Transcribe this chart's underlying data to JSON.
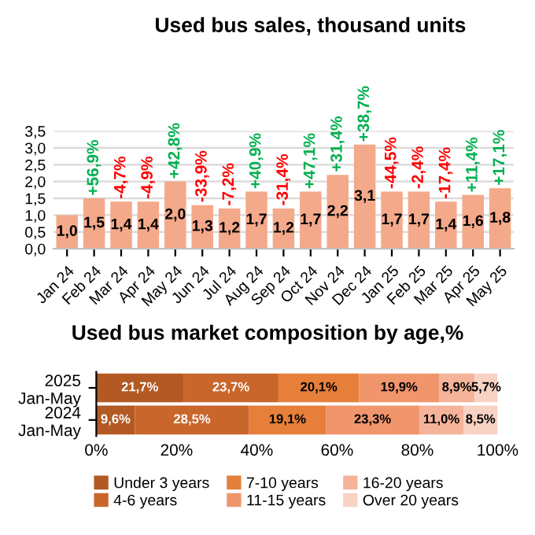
{
  "chart_data": [
    {
      "type": "bar",
      "title": "Used bus sales, thousand units",
      "categories": [
        "Jan 24",
        "Feb 24",
        "Mar 24",
        "Apr 24",
        "May 24",
        "Jun 24",
        "Jul 24",
        "Aug 24",
        "Sep 24",
        "Oct 24",
        "Nov 24",
        "Dec 24",
        "Jan 25",
        "Feb 25",
        "Mar 25",
        "Apr 25",
        "May 25"
      ],
      "values": [
        1.0,
        1.5,
        1.4,
        1.4,
        2.0,
        1.3,
        1.2,
        1.7,
        1.2,
        1.7,
        2.2,
        3.1,
        1.7,
        1.7,
        1.4,
        1.6,
        1.8
      ],
      "value_labels": [
        "1,0",
        "1,5",
        "1,4",
        "1,4",
        "2,0",
        "1,3",
        "1,2",
        "1,7",
        "1,2",
        "1,7",
        "2,2",
        "3,1",
        "1,7",
        "1,7",
        "1,4",
        "1,6",
        "1,8"
      ],
      "color": "#f4a98a",
      "ylim": [
        0,
        3.5
      ],
      "yticks": [
        {
          "value": 0,
          "label": "0,0"
        },
        {
          "value": 0.5,
          "label": "0,5"
        },
        {
          "value": 1,
          "label": "1,0"
        },
        {
          "value": 1.5,
          "label": "1,5"
        },
        {
          "value": 2,
          "label": "2,0"
        },
        {
          "value": 2.5,
          "label": "2,5"
        },
        {
          "value": 3,
          "label": "3,0"
        },
        {
          "value": 3.5,
          "label": "3,5"
        }
      ],
      "grid": "y",
      "annotations": [
        {
          "text": "+56,9%",
          "x": "Feb 24",
          "y": 1.5
        },
        {
          "text": "-4,7%",
          "x": "Mar 24",
          "y": 1.4
        },
        {
          "text": "-4,9%",
          "x": "Apr 24",
          "y": 1.4
        },
        {
          "text": "+42,8%",
          "x": "May 24",
          "y": 2.0
        },
        {
          "text": "-33,9%",
          "x": "Jun 24",
          "y": 1.3
        },
        {
          "text": "-7,2%",
          "x": "Jul 24",
          "y": 1.2
        },
        {
          "text": "+40,9%",
          "x": "Aug 24",
          "y": 1.7
        },
        {
          "text": "-31,4%",
          "x": "Sep 24",
          "y": 1.2
        },
        {
          "text": "+47,1%",
          "x": "Oct 24",
          "y": 1.7
        },
        {
          "text": "+31,4%",
          "x": "Nov 24",
          "y": 2.2
        },
        {
          "text": "+38,7%",
          "x": "Dec 24",
          "y": 3.1
        },
        {
          "text": "-44,5%",
          "x": "Jan 25",
          "y": 1.7
        },
        {
          "text": "-2,4%",
          "x": "Feb 25",
          "y": 1.7
        },
        {
          "text": "-17,4%",
          "x": "Mar 25",
          "y": 1.4
        },
        {
          "text": "+11,4%",
          "x": "Apr 25",
          "y": 1.6
        },
        {
          "text": "+17,1%",
          "x": "May 25",
          "y": 1.8
        }
      ]
    },
    {
      "type": "bar",
      "title": "Used bus market composition by age,%",
      "orientation": "horizontal",
      "stacked": true,
      "categories": [
        "2025\nJan-May",
        "2024\nJan-May"
      ],
      "series": [
        {
          "name": "Under 3 years",
          "color": "#b35a24",
          "values": [
            21.7,
            9.6
          ],
          "value_labels": [
            "21,7%",
            "9,6%"
          ]
        },
        {
          "name": "4-6 years",
          "color": "#c9662c",
          "values": [
            23.7,
            28.5
          ],
          "value_labels": [
            "23,7%",
            "28,5%"
          ]
        },
        {
          "name": "7-10 years",
          "color": "#e57f3a",
          "values": [
            20.1,
            19.1
          ],
          "value_labels": [
            "20,1%",
            "19,1%"
          ]
        },
        {
          "name": "11-15 years",
          "color": "#f0956c",
          "values": [
            19.9,
            23.3
          ],
          "value_labels": [
            "19,9%",
            "23,3%"
          ]
        },
        {
          "name": "16-20 years",
          "color": "#f5b49a",
          "values": [
            8.9,
            11.0
          ],
          "value_labels": [
            "8,9%",
            "11,0%"
          ]
        },
        {
          "name": "Over 20 years",
          "color": "#f8d2c3",
          "values": [
            5.7,
            8.5
          ],
          "value_labels": [
            "5,7%",
            "8,5%"
          ]
        }
      ],
      "xlim": [
        0,
        100
      ],
      "xticks": [
        {
          "value": 0,
          "label": "0%"
        },
        {
          "value": 20,
          "label": "20%"
        },
        {
          "value": 40,
          "label": "40%"
        },
        {
          "value": 60,
          "label": "60%"
        },
        {
          "value": 80,
          "label": "80%"
        },
        {
          "value": 100,
          "label": "100%"
        }
      ],
      "legend": "bottom"
    }
  ]
}
